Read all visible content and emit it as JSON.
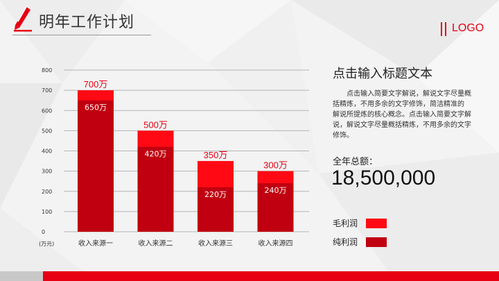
{
  "header": {
    "title": "明年工作计划",
    "logo": "LOGO"
  },
  "colors": {
    "accent": "#e60012",
    "dark": "#c00010",
    "bright": "#ff0a14"
  },
  "chart_data": {
    "type": "bar",
    "categories": [
      "收入来源一",
      "收入来源二",
      "收入来源三",
      "收入来源四"
    ],
    "series": [
      {
        "name": "毛利润",
        "values": [
          700,
          500,
          350,
          300
        ],
        "labels": [
          "700万",
          "500万",
          "350万",
          "300万"
        ]
      },
      {
        "name": "纯利润",
        "values": [
          650,
          420,
          220,
          240
        ],
        "labels": [
          "650万",
          "420万",
          "220万",
          "240万"
        ]
      }
    ],
    "yticks": [
      0,
      100,
      200,
      300,
      400,
      500,
      600,
      700,
      800
    ],
    "ylim": [
      0,
      800
    ],
    "unit_label": "(万元)",
    "grid": true
  },
  "panel": {
    "title": "点击输入标题文本",
    "description": "点击输入简要文字解说，解说文字尽量概括精炼，不用多余的文字修饰，简洁精准的 解说所提炼的核心概念。点击输入简要文字解说，解说文字尽量概括精炼，不用多余的文字修饰。",
    "total_label": "全年总额：",
    "total_value": "18,500,000"
  },
  "legend": [
    {
      "label": "毛利润",
      "color": "#ff0a14"
    },
    {
      "label": "纯利润",
      "color": "#c00010"
    }
  ]
}
